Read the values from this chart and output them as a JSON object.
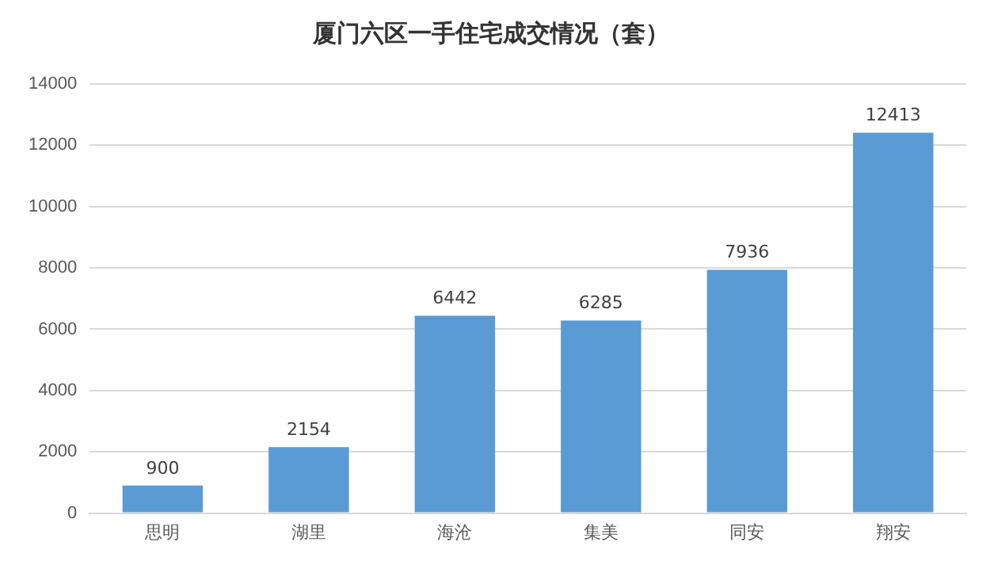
{
  "chart_data": {
    "type": "bar",
    "title": "厦门六区一手住宅成交情况（套）",
    "categories": [
      "思明",
      "湖里",
      "海沧",
      "集美",
      "同安",
      "翔安"
    ],
    "values": [
      900,
      2154,
      6442,
      6285,
      7936,
      12413
    ],
    "color": "#5b9bd5",
    "ylim": [
      0,
      14000
    ],
    "yticks": [
      0,
      2000,
      4000,
      6000,
      8000,
      10000,
      12000,
      14000
    ],
    "grid": "y",
    "data_labels": true
  }
}
